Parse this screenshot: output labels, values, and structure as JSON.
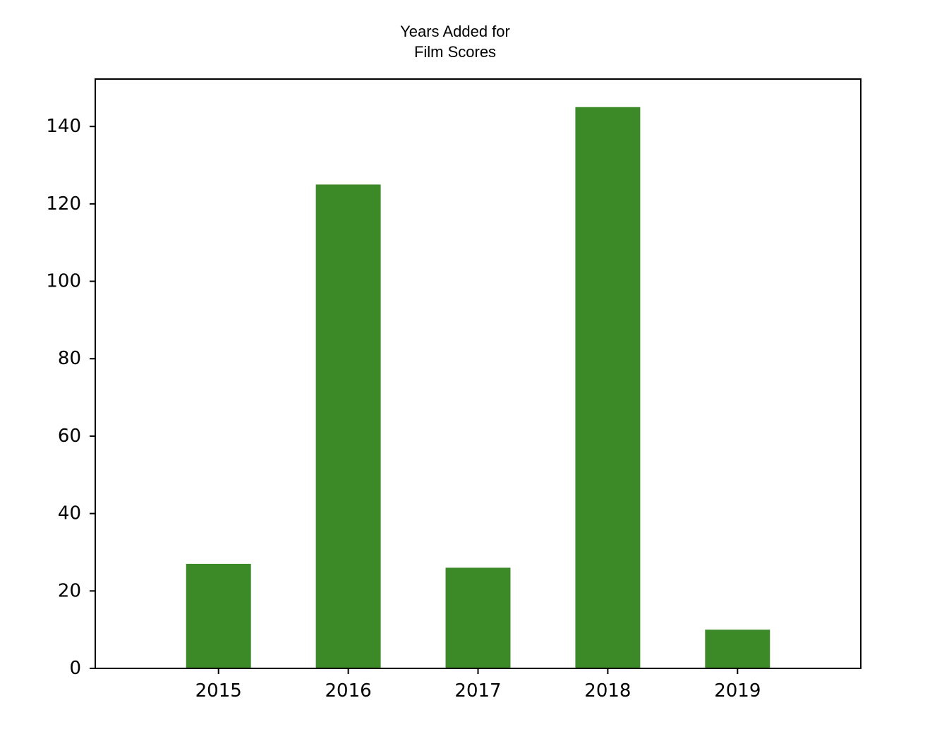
{
  "chart_data": {
    "type": "bar",
    "title": "Years Added for\nFilm Scores",
    "xlabel": "",
    "ylabel": "",
    "categories": [
      "2015",
      "2016",
      "2017",
      "2018",
      "2019"
    ],
    "values": [
      27,
      125,
      26,
      145,
      10
    ],
    "ylim": [
      0,
      152.25
    ],
    "yticks": [
      0,
      20,
      40,
      60,
      80,
      100,
      120,
      140
    ],
    "bar_color": "#3b8a27",
    "grid": false,
    "legend": "none"
  }
}
